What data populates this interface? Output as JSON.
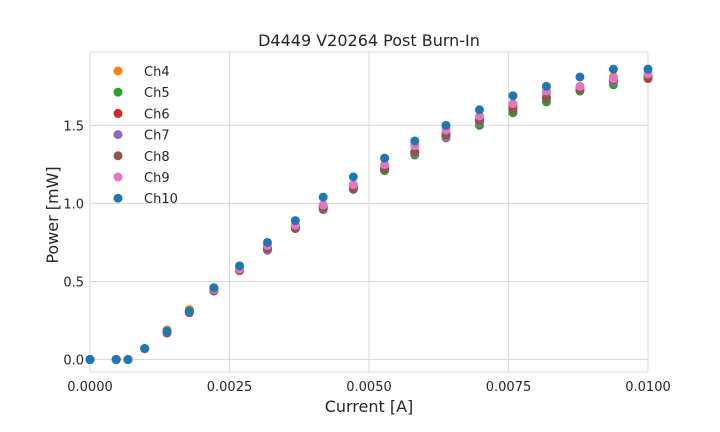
{
  "chart_data": {
    "type": "scatter",
    "title": "D4449 V20264 Post Burn-In",
    "xlabel": "Current [A]",
    "ylabel": "Power [mW]",
    "xlim": [
      0,
      0.01
    ],
    "ylim": [
      -0.08,
      1.97
    ],
    "xticks": [
      "0.0000",
      "0.0025",
      "0.0050",
      "0.0075",
      "0.0100"
    ],
    "xtick_values": [
      0,
      0.0025,
      0.005,
      0.0075,
      0.01
    ],
    "yticks": [
      "0.0",
      "0.5",
      "1.0",
      "1.5"
    ],
    "ytick_values": [
      0,
      0.5,
      1.0,
      1.5
    ],
    "grid": true,
    "legend_position": "top-left",
    "series": [
      {
        "name": "Ch4",
        "color": "#ff7f0e",
        "x": [
          0,
          0.00047,
          0.00068,
          0.00098,
          0.00138,
          0.00178,
          0.00222,
          0.00268,
          0.00318,
          0.00368,
          0.00418,
          0.00472,
          0.00528,
          0.00582,
          0.00638,
          0.00698,
          0.00758,
          0.00818,
          0.00878,
          0.00938,
          0.01
        ],
        "y": [
          0,
          0,
          0,
          0.07,
          0.19,
          0.32,
          0.45,
          0.58,
          0.72,
          0.85,
          0.98,
          1.11,
          1.22,
          1.33,
          1.45,
          1.54,
          1.63,
          1.71,
          1.75,
          1.81,
          1.82
        ]
      },
      {
        "name": "Ch5",
        "color": "#2ca02c",
        "x": [
          0,
          0.00047,
          0.00068,
          0.00098,
          0.00138,
          0.00178,
          0.00222,
          0.00268,
          0.00318,
          0.00368,
          0.00418,
          0.00472,
          0.00528,
          0.00582,
          0.00638,
          0.00698,
          0.00758,
          0.00818,
          0.00878,
          0.00938,
          0.01
        ],
        "y": [
          0,
          0,
          0,
          0.07,
          0.18,
          0.31,
          0.44,
          0.57,
          0.71,
          0.84,
          0.97,
          1.1,
          1.21,
          1.31,
          1.42,
          1.5,
          1.58,
          1.65,
          1.72,
          1.76,
          1.81
        ]
      },
      {
        "name": "Ch6",
        "color": "#d62728",
        "x": [
          0,
          0.00047,
          0.00068,
          0.00098,
          0.00138,
          0.00178,
          0.00222,
          0.00268,
          0.00318,
          0.00368,
          0.00418,
          0.00472,
          0.00528,
          0.00582,
          0.00638,
          0.00698,
          0.00758,
          0.00818,
          0.00878,
          0.00938,
          0.01
        ],
        "y": [
          0,
          0,
          0,
          0.07,
          0.18,
          0.31,
          0.44,
          0.57,
          0.71,
          0.85,
          0.98,
          1.11,
          1.22,
          1.33,
          1.44,
          1.53,
          1.62,
          1.68,
          1.74,
          1.79,
          1.8
        ]
      },
      {
        "name": "Ch7",
        "color": "#9467bd",
        "x": [
          0,
          0.00047,
          0.00068,
          0.00098,
          0.00138,
          0.00178,
          0.00222,
          0.00268,
          0.00318,
          0.00368,
          0.00418,
          0.00472,
          0.00528,
          0.00582,
          0.00638,
          0.00698,
          0.00758,
          0.00818,
          0.00878,
          0.00938,
          0.01
        ],
        "y": [
          0,
          0,
          0,
          0.07,
          0.17,
          0.3,
          0.44,
          0.57,
          0.7,
          0.84,
          0.96,
          1.1,
          1.22,
          1.32,
          1.42,
          1.52,
          1.6,
          1.68,
          1.73,
          1.78,
          1.81
        ]
      },
      {
        "name": "Ch8",
        "color": "#8c564b",
        "x": [
          0,
          0.00047,
          0.00068,
          0.00098,
          0.00138,
          0.00178,
          0.00222,
          0.00268,
          0.00318,
          0.00368,
          0.00418,
          0.00472,
          0.00528,
          0.00582,
          0.00638,
          0.00698,
          0.00758,
          0.00818,
          0.00878,
          0.00938,
          0.01
        ],
        "y": [
          0,
          0,
          0,
          0.07,
          0.17,
          0.3,
          0.44,
          0.57,
          0.71,
          0.84,
          0.97,
          1.09,
          1.22,
          1.33,
          1.44,
          1.53,
          1.6,
          1.67,
          1.73,
          1.79,
          1.81
        ]
      },
      {
        "name": "Ch9",
        "color": "#e377c2",
        "x": [
          0,
          0.00047,
          0.00068,
          0.00098,
          0.00138,
          0.00178,
          0.00222,
          0.00268,
          0.00318,
          0.00368,
          0.00418,
          0.00472,
          0.00528,
          0.00582,
          0.00638,
          0.00698,
          0.00758,
          0.00818,
          0.00878,
          0.00938,
          0.01
        ],
        "y": [
          0,
          0,
          0,
          0.07,
          0.18,
          0.31,
          0.45,
          0.58,
          0.73,
          0.86,
          0.99,
          1.12,
          1.25,
          1.37,
          1.47,
          1.56,
          1.64,
          1.72,
          1.75,
          1.8,
          1.83
        ]
      },
      {
        "name": "Ch10",
        "color": "#1f77b4",
        "x": [
          0,
          0.00047,
          0.00068,
          0.00098,
          0.00138,
          0.00178,
          0.00222,
          0.00268,
          0.00318,
          0.00368,
          0.00418,
          0.00472,
          0.00528,
          0.00582,
          0.00638,
          0.00698,
          0.00758,
          0.00818,
          0.00878,
          0.00938,
          0.01
        ],
        "y": [
          0,
          0,
          0,
          0.07,
          0.18,
          0.31,
          0.46,
          0.6,
          0.75,
          0.89,
          1.04,
          1.17,
          1.29,
          1.4,
          1.5,
          1.6,
          1.69,
          1.75,
          1.81,
          1.86,
          1.86
        ]
      }
    ]
  }
}
